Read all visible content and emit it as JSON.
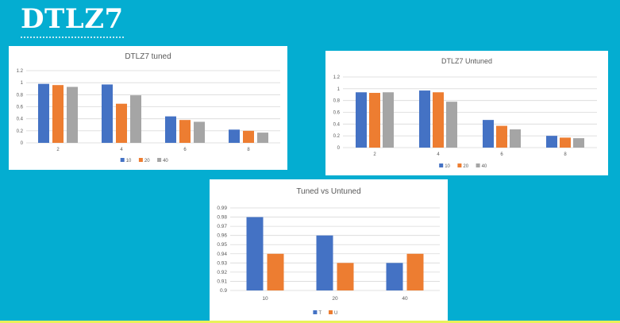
{
  "slide": {
    "title": "DTLZ7",
    "colors": {
      "background": "#04add1",
      "panel": "#ffffff",
      "grid": "#d9d9d9"
    }
  },
  "chart_data": [
    {
      "type": "bar",
      "title": "DTLZ7 tuned",
      "categories": [
        "2",
        "4",
        "6",
        "8"
      ],
      "series": [
        {
          "name": "10",
          "color": "#4472c4",
          "values": [
            0.98,
            0.97,
            0.44,
            0.22
          ]
        },
        {
          "name": "20",
          "color": "#ed7d31",
          "values": [
            0.96,
            0.65,
            0.38,
            0.2
          ]
        },
        {
          "name": "40",
          "color": "#a5a5a5",
          "values": [
            0.93,
            0.79,
            0.35,
            0.17
          ]
        }
      ],
      "ylim": [
        0,
        1.2
      ],
      "yticks": [
        "0",
        "0.2",
        "0.4",
        "0.6",
        "0.8",
        "1",
        "1.2"
      ],
      "grid": true,
      "legend": "bottom"
    },
    {
      "type": "bar",
      "title": "DTLZ7 Untuned",
      "categories": [
        "2",
        "4",
        "6",
        "8"
      ],
      "series": [
        {
          "name": "10",
          "color": "#4472c4",
          "values": [
            0.94,
            0.97,
            0.47,
            0.2
          ]
        },
        {
          "name": "20",
          "color": "#ed7d31",
          "values": [
            0.93,
            0.94,
            0.37,
            0.17
          ]
        },
        {
          "name": "40",
          "color": "#a5a5a5",
          "values": [
            0.94,
            0.78,
            0.31,
            0.16
          ]
        }
      ],
      "ylim": [
        0,
        1.2
      ],
      "yticks": [
        "0",
        "0.2",
        "0.4",
        "0.6",
        "0.8",
        "1",
        "1.2"
      ],
      "grid": true,
      "legend": "bottom"
    },
    {
      "type": "bar",
      "title": "Tuned vs Untuned",
      "categories": [
        "10",
        "20",
        "40"
      ],
      "series": [
        {
          "name": "T",
          "color": "#4472c4",
          "values": [
            0.98,
            0.96,
            0.93
          ]
        },
        {
          "name": "U",
          "color": "#ed7d31",
          "values": [
            0.94,
            0.93,
            0.94
          ]
        }
      ],
      "ylim": [
        0.9,
        0.99
      ],
      "yticks": [
        "0.9",
        "0.91",
        "0.92",
        "0.93",
        "0.94",
        "0.95",
        "0.96",
        "0.97",
        "0.98",
        "0.99"
      ],
      "grid": true,
      "legend": "bottom"
    }
  ]
}
